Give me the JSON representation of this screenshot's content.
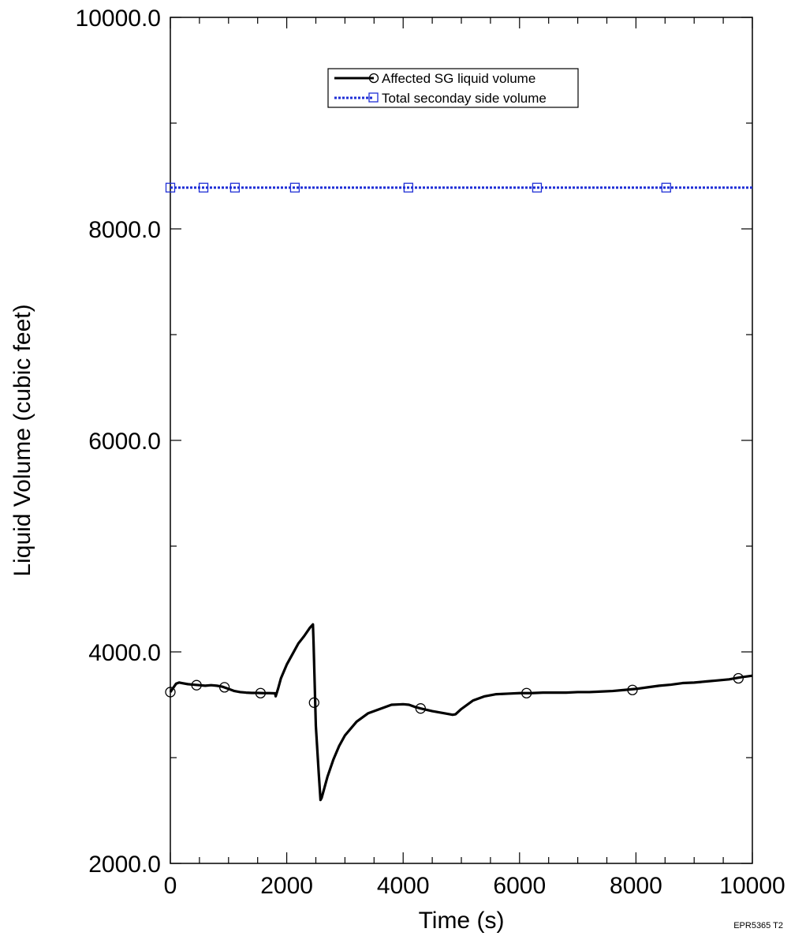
{
  "chart_data": {
    "type": "line",
    "title": "",
    "xlabel": "Time (s)",
    "ylabel": "Liquid Volume (cubic feet)",
    "xlim": [
      0,
      10000
    ],
    "ylim": [
      2000,
      10000
    ],
    "x_ticks": [
      0,
      2000,
      4000,
      6000,
      8000,
      10000
    ],
    "x_tick_labels": [
      "0",
      "2000",
      "4000",
      "6000",
      "8000",
      "10000"
    ],
    "y_ticks": [
      2000,
      4000,
      6000,
      8000,
      10000
    ],
    "y_tick_labels": [
      "2000.0",
      "4000.0",
      "6000.0",
      "8000.0",
      "10000.0"
    ],
    "grid": false,
    "legend_position": "top-center",
    "series": [
      {
        "name": "Affected SG liquid volume",
        "color": "#000000",
        "marker": "circle",
        "x": [
          0,
          50,
          100,
          150,
          200,
          300,
          400,
          500,
          600,
          700,
          800,
          900,
          1000,
          1100,
          1200,
          1300,
          1400,
          1500,
          1600,
          1700,
          1800,
          1810,
          1850,
          1900,
          2000,
          2100,
          2200,
          2300,
          2400,
          2450,
          2460,
          2480,
          2500,
          2550,
          2580,
          2600,
          2650,
          2700,
          2800,
          2900,
          3000,
          3200,
          3400,
          3600,
          3800,
          4000,
          4100,
          4200,
          4300,
          4500,
          4700,
          4850,
          4900,
          5000,
          5200,
          5400,
          5600,
          5800,
          6000,
          6200,
          6400,
          6600,
          6800,
          7000,
          7200,
          7400,
          7600,
          7800,
          8000,
          8200,
          8400,
          8600,
          8800,
          9000,
          9200,
          9400,
          9600,
          9800,
          10000
        ],
        "y": [
          3620,
          3660,
          3700,
          3710,
          3705,
          3695,
          3690,
          3685,
          3680,
          3685,
          3680,
          3670,
          3650,
          3630,
          3620,
          3615,
          3612,
          3612,
          3610,
          3610,
          3608,
          3580,
          3650,
          3750,
          3880,
          3980,
          4080,
          4150,
          4230,
          4260,
          4100,
          3700,
          3300,
          2850,
          2600,
          2620,
          2720,
          2820,
          2980,
          3110,
          3210,
          3340,
          3420,
          3460,
          3500,
          3505,
          3500,
          3480,
          3465,
          3440,
          3420,
          3405,
          3410,
          3460,
          3540,
          3580,
          3600,
          3605,
          3610,
          3610,
          3615,
          3615,
          3615,
          3620,
          3620,
          3625,
          3630,
          3640,
          3650,
          3665,
          3680,
          3690,
          3705,
          3710,
          3720,
          3730,
          3740,
          3760,
          3775
        ],
        "markers_x": [
          0,
          450,
          930,
          1550,
          2470,
          4300,
          6120,
          7940,
          9760
        ],
        "markers_y": [
          3620,
          3685,
          3665,
          3610,
          3520,
          3465,
          3610,
          3640,
          3750
        ]
      },
      {
        "name": "Total seconday side volume",
        "color": "#1f2fd6",
        "marker": "square",
        "x": [
          0,
          10000
        ],
        "y": [
          8390,
          8390
        ],
        "markers_x": [
          0,
          570,
          1110,
          2140,
          4090,
          6300,
          8520
        ],
        "markers_y": [
          8390,
          8390,
          8390,
          8390,
          8390,
          8390,
          8390
        ]
      }
    ]
  },
  "figure_id": "EPR5365 T2"
}
